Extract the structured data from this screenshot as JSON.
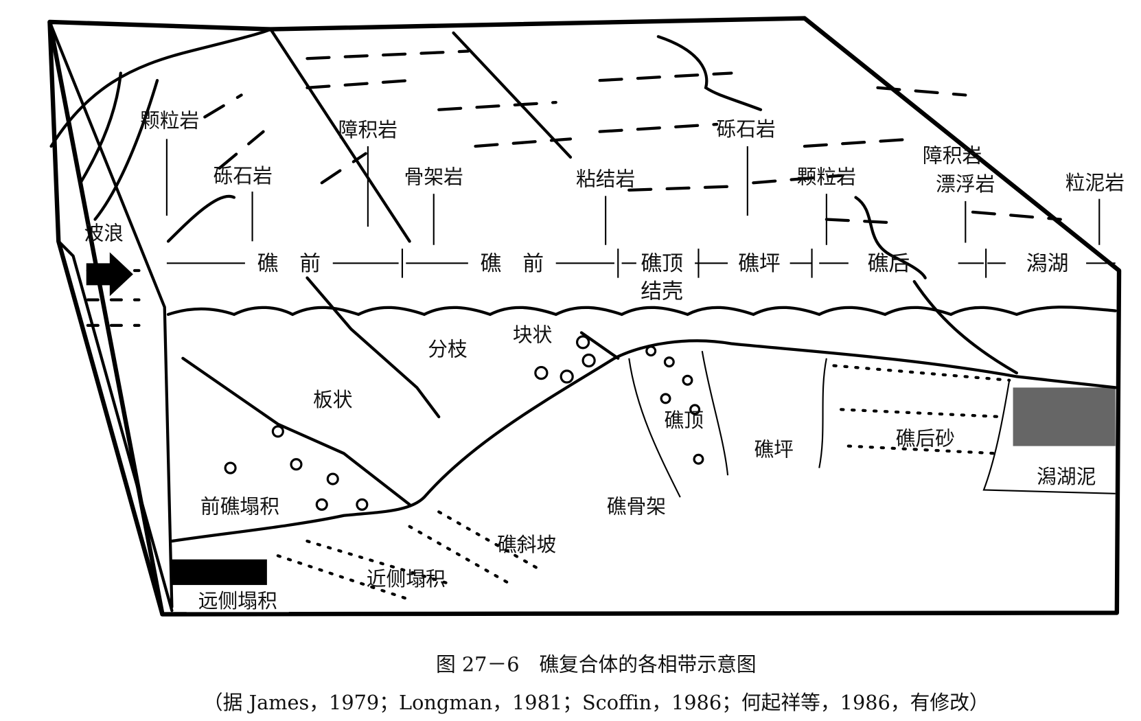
{
  "diagram": {
    "top_labels": [
      "颗粒岩",
      "砾石岩",
      "障积岩",
      "骨架岩",
      "粘结岩",
      "砾石岩",
      "颗粒岩",
      "障积岩",
      "漂浮岩",
      "粒泥岩"
    ],
    "wave_label": "波浪",
    "zones": [
      "礁　前",
      "礁　前",
      "礁顶",
      "结壳",
      "礁坪",
      "礁后",
      "潟湖"
    ],
    "section_labels": {
      "massive": "块状",
      "branching": "分枝",
      "platy": "板状",
      "reef_crest": "礁顶",
      "reef_flat": "礁坪",
      "back_reef_sand": "礁后砂",
      "lagoon_mud": "潟湖泥",
      "fore_reef_talus": "前礁塌积",
      "reef_framework": "礁骨架",
      "reef_slope": "礁斜坡",
      "proximal_talus": "近侧塌积",
      "distal_talus": "远侧塌积"
    }
  },
  "caption": {
    "title": "图 27－6　礁复合体的各相带示意图",
    "source": "（据 James，1979；Longman，1981；Scoffin，1986；何起祥等，1986，有修改）"
  }
}
